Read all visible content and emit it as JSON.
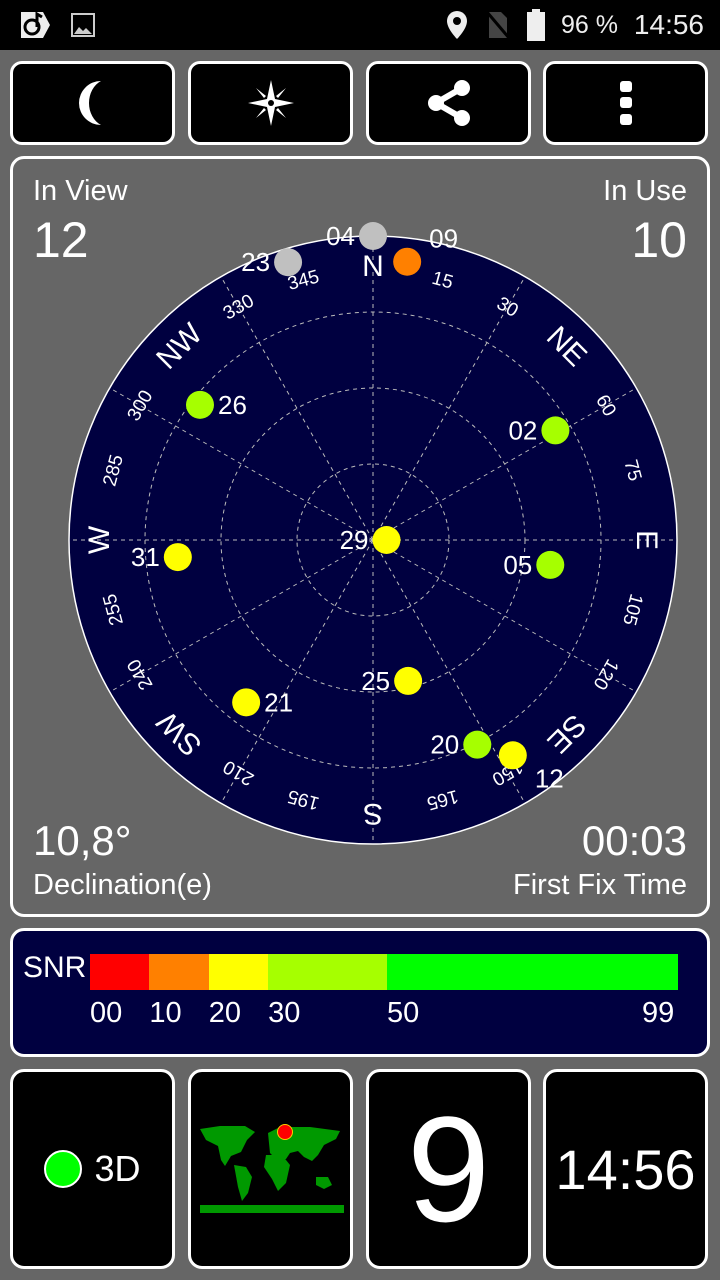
{
  "status_bar": {
    "icons": [
      "app-icon",
      "image-icon",
      "location-icon",
      "no-sim-icon",
      "battery-icon"
    ],
    "battery": "96 %",
    "time": "14:56"
  },
  "toolbar": {
    "buttons": [
      {
        "icon": "moon-icon"
      },
      {
        "icon": "compass-star-icon"
      },
      {
        "icon": "share-icon"
      },
      {
        "icon": "more-vert-icon"
      }
    ]
  },
  "sky": {
    "in_view_label": "In View",
    "in_view": "12",
    "in_use_label": "In Use",
    "in_use": "10",
    "declination": "10,8°",
    "declination_label": "Declination(e)",
    "first_fix": "00:03",
    "first_fix_label": "First Fix Time",
    "cardinals": [
      {
        "t": "N",
        "az": 0
      },
      {
        "t": "NE",
        "az": 45
      },
      {
        "t": "E",
        "az": 90
      },
      {
        "t": "SE",
        "az": 135
      },
      {
        "t": "S",
        "az": 180
      },
      {
        "t": "SW",
        "az": 225
      },
      {
        "t": "W",
        "az": 270
      },
      {
        "t": "NW",
        "az": 315
      }
    ],
    "degrees": [
      "15",
      "30",
      "60",
      "75",
      "105",
      "120",
      "150",
      "165",
      "195",
      "210",
      "240",
      "255",
      "285",
      "300",
      "330",
      "345"
    ],
    "colors": {
      "background": "#000040",
      "gray": "#c0c0c0",
      "orange": "#ff8000",
      "yellow": "#ffff00",
      "lime": "#a6ff00"
    },
    "satellites": [
      {
        "id": "04",
        "az": 0,
        "el": 0,
        "color": "#c0c0c0"
      },
      {
        "id": "23",
        "az": 343,
        "el": 4,
        "color": "#c0c0c0"
      },
      {
        "id": "09",
        "az": 7,
        "el": 7,
        "color": "#ff8000"
      },
      {
        "id": "26",
        "az": 308,
        "el": 25,
        "color": "#a6ff00"
      },
      {
        "id": "02",
        "az": 59,
        "el": 27,
        "color": "#a6ff00"
      },
      {
        "id": "05",
        "az": 98,
        "el": 37,
        "color": "#a6ff00"
      },
      {
        "id": "29",
        "az": 90,
        "el": 86,
        "color": "#ffff00"
      },
      {
        "id": "31",
        "az": 265,
        "el": 32,
        "color": "#ffff00"
      },
      {
        "id": "21",
        "az": 218,
        "el": 29,
        "color": "#ffff00"
      },
      {
        "id": "25",
        "az": 166,
        "el": 47,
        "color": "#ffff00"
      },
      {
        "id": "20",
        "az": 153,
        "el": 22,
        "color": "#a6ff00"
      },
      {
        "id": "12",
        "az": 147,
        "el": 14,
        "color": "#ffff00"
      }
    ]
  },
  "snr": {
    "title": "SNR",
    "segments": [
      {
        "from": 0,
        "to": 10,
        "color": "#ff0000"
      },
      {
        "from": 10,
        "to": 20,
        "color": "#ff8000"
      },
      {
        "from": 20,
        "to": 30,
        "color": "#ffff00"
      },
      {
        "from": 30,
        "to": 50,
        "color": "#a6ff00"
      },
      {
        "from": 50,
        "to": 99,
        "color": "#00ff00"
      }
    ],
    "ticks": [
      "00",
      "10",
      "20",
      "30",
      "50",
      "99"
    ]
  },
  "tiles": {
    "fix": "3D",
    "fix_color": "#00ff00",
    "satellites_count": "9",
    "clock": "14:56"
  }
}
